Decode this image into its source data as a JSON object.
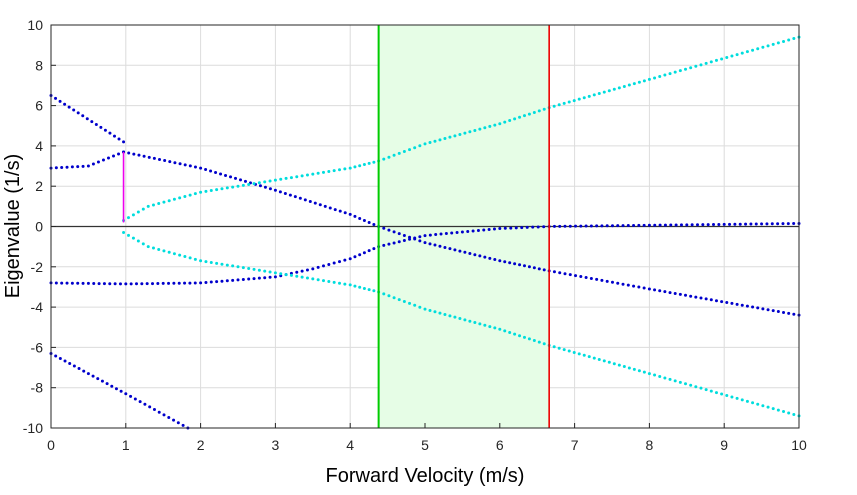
{
  "chart_data": {
    "type": "scatter",
    "title": "",
    "xlabel": "Forward Velocity (m/s)",
    "ylabel": "Eigenvalue (1/s)",
    "xlim": [
      0,
      10
    ],
    "ylim": [
      -10,
      10
    ],
    "x_ticks": [
      0,
      1,
      2,
      3,
      4,
      5,
      6,
      7,
      8,
      9,
      10
    ],
    "y_ticks": [
      -10,
      -8,
      -6,
      -4,
      -2,
      0,
      2,
      4,
      6,
      8,
      10
    ],
    "x_tick_labels": [
      "0",
      "1",
      "2",
      "3",
      "4",
      "5",
      "6",
      "7",
      "8",
      "9",
      "10"
    ],
    "y_tick_labels": [
      "-10",
      "-8",
      "-6",
      "-4",
      "-2",
      "0",
      "2",
      "4",
      "6",
      "8",
      "10"
    ],
    "grid": true,
    "zero_line": {
      "y": 0,
      "color": "#333333"
    },
    "stable_region": {
      "x_start": 4.38,
      "x_end": 6.66,
      "fill": "#e6fde6",
      "start_color": "#00cc00",
      "end_color": "#ee0000"
    },
    "weave_speed_marker": {
      "x": 0.97,
      "y_from": 0.2,
      "y_to": 3.7,
      "color": "#ee00ee"
    },
    "series": [
      {
        "color": "#0000cc",
        "points": [
          [
            0,
            6.5
          ],
          [
            0.97,
            4.2
          ]
        ]
      },
      {
        "color": "#0000cc",
        "points": [
          [
            0,
            2.9
          ],
          [
            0.5,
            3.0
          ],
          [
            0.97,
            3.7
          ]
        ]
      },
      {
        "color": "#0000cc",
        "points": [
          [
            0,
            -2.8
          ],
          [
            1,
            -2.85
          ],
          [
            2,
            -2.8
          ],
          [
            3,
            -2.5
          ],
          [
            3.5,
            -2.1
          ],
          [
            4,
            -1.6
          ],
          [
            4.38,
            -1.0
          ],
          [
            5,
            -0.45
          ],
          [
            6,
            -0.1
          ],
          [
            6.66,
            0.0
          ],
          [
            8,
            0.06
          ],
          [
            10,
            0.15
          ]
        ]
      },
      {
        "color": "#0000cc",
        "points": [
          [
            0,
            -6.3
          ],
          [
            1,
            -8.3
          ],
          [
            1.83,
            -10.0
          ]
        ]
      },
      {
        "color": "#0000cc",
        "points": [
          [
            0.97,
            3.7
          ],
          [
            2,
            2.9
          ],
          [
            3,
            1.8
          ],
          [
            4,
            0.6
          ],
          [
            4.38,
            0.0
          ],
          [
            5,
            -0.8
          ],
          [
            6,
            -1.7
          ],
          [
            6.66,
            -2.2
          ],
          [
            8,
            -3.1
          ],
          [
            10,
            -4.4
          ]
        ]
      },
      {
        "color": "#00dddd",
        "points": [
          [
            0.97,
            0.3
          ],
          [
            1.3,
            1.0
          ],
          [
            2,
            1.7
          ],
          [
            3,
            2.3
          ],
          [
            4,
            2.9
          ],
          [
            4.38,
            3.25
          ],
          [
            5,
            4.1
          ],
          [
            6,
            5.1
          ],
          [
            6.66,
            5.9
          ],
          [
            8,
            7.3
          ],
          [
            10,
            9.4
          ]
        ]
      },
      {
        "color": "#00dddd",
        "points": [
          [
            0.97,
            -0.3
          ],
          [
            1.3,
            -1.0
          ],
          [
            2,
            -1.7
          ],
          [
            3,
            -2.3
          ],
          [
            4,
            -2.9
          ],
          [
            4.38,
            -3.25
          ],
          [
            5,
            -4.1
          ],
          [
            6,
            -5.1
          ],
          [
            6.66,
            -5.9
          ],
          [
            8,
            -7.3
          ],
          [
            10,
            -9.4
          ]
        ]
      }
    ]
  }
}
